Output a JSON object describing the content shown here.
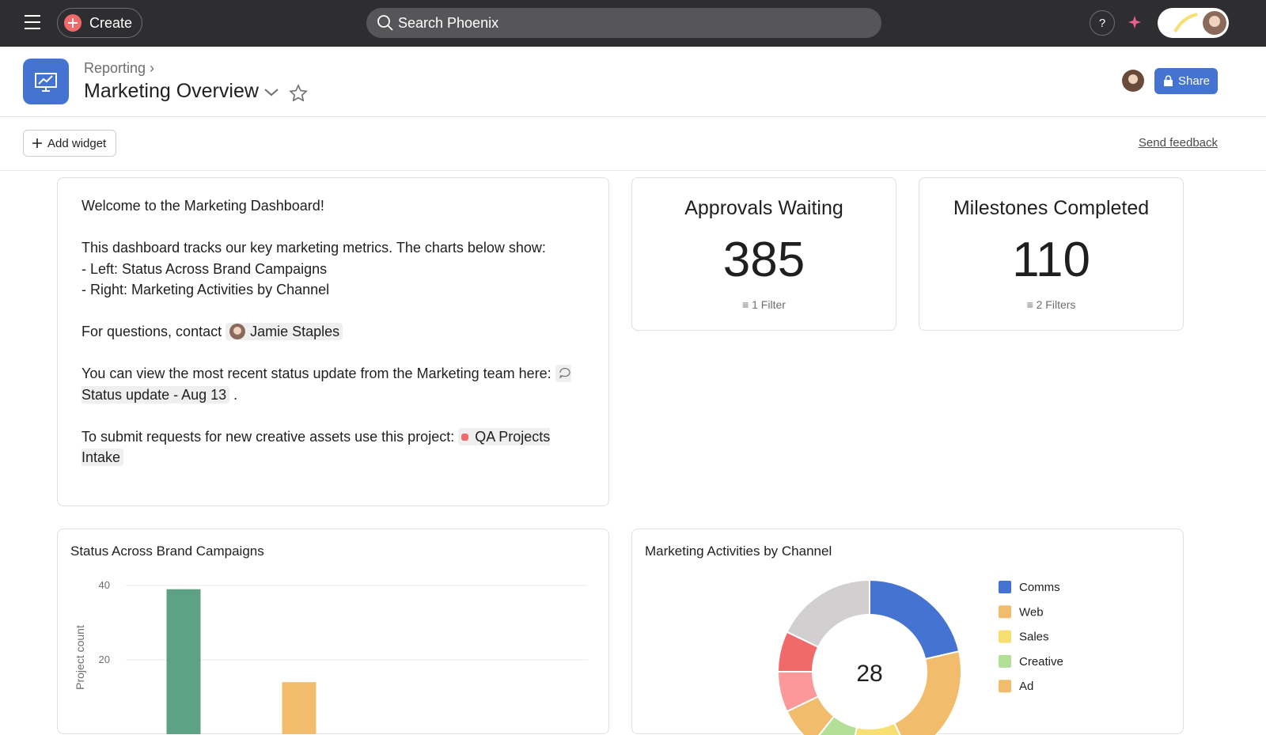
{
  "topbar": {
    "create": "Create",
    "search": "Search Phoenix"
  },
  "header": {
    "breadcrumb": "Reporting",
    "title": "Marketing Overview",
    "share": "Share"
  },
  "toolbar": {
    "add_widget": "Add widget",
    "feedback": "Send feedback"
  },
  "text_widget": {
    "welcome": "Welcome to the Marketing Dashboard!",
    "intro": "This dashboard tracks our key marketing metrics. The charts below show:",
    "left": "- Left: Status Across Brand Campaigns",
    "right": "- Right: Marketing Activities by Channel",
    "contact": "For questions, contact",
    "contact_name": "Jamie Staples",
    "status": "You can view the most recent status update from the Marketing team here:",
    "status_link": "Status update - Aug 13",
    "status_end": ".",
    "submit": "To submit requests for new creative assets use this project:",
    "project": "QA Projects Intake"
  },
  "metrics": [
    {
      "title": "Approvals Waiting",
      "value": 385,
      "filter": "1 Filter"
    },
    {
      "title": "Milestones Completed",
      "value": 110,
      "filter": "2 Filters"
    }
  ],
  "bar_chart": {
    "type": "bar",
    "title": "Status Across Brand Campaigns",
    "y_label": "Project count",
    "categories": [
      null,
      null
    ],
    "values": [
      39,
      14
    ],
    "colors": [
      "#5da283",
      "#f1bd6c"
    ],
    "ylim": [
      0,
      40
    ],
    "yticks": [
      20,
      40
    ],
    "grid": true
  },
  "donut_chart": {
    "type": "donut",
    "title": "Marketing Activities by Channel",
    "center_label": 28,
    "categories": [
      "Comms",
      "Web",
      "Sales",
      "Creative",
      "Ad",
      null,
      null,
      null
    ],
    "values": [
      6,
      6,
      3,
      2,
      2,
      2,
      2,
      5
    ],
    "colors": [
      "#4573d2",
      "#f1bd6c",
      "#f8df72",
      "#b3df97",
      "#f1bd6c",
      "#fc979a",
      "#f06a6a",
      "#d1cfcf"
    ]
  }
}
